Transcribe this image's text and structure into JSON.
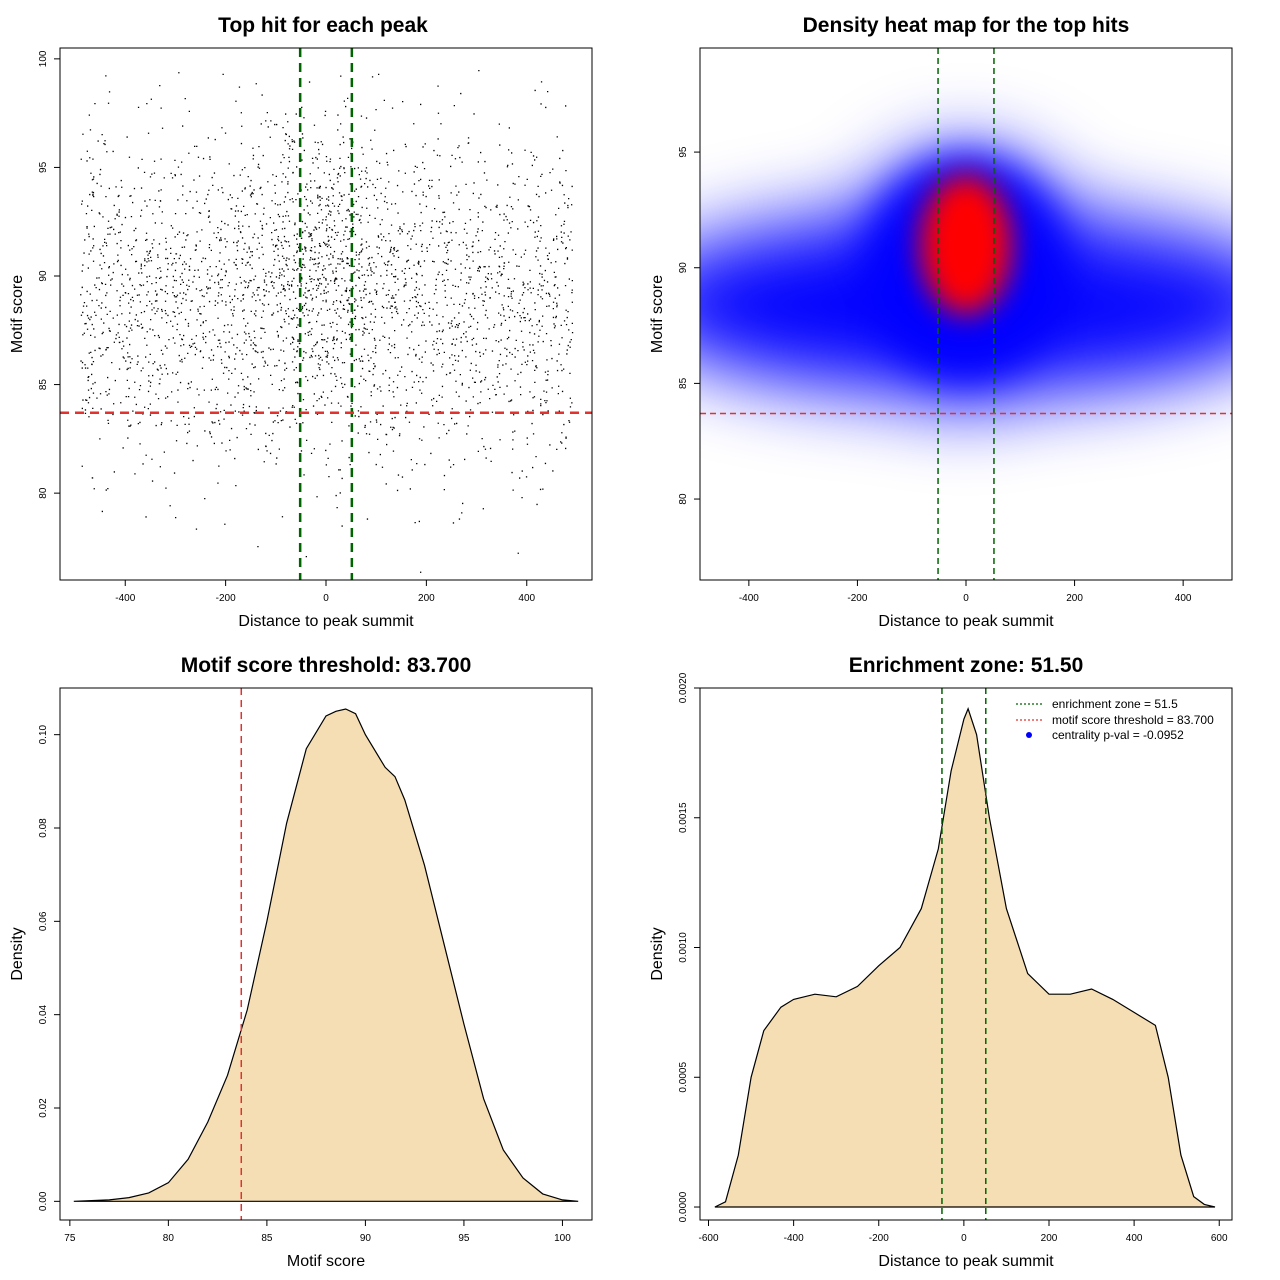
{
  "figure": {
    "colors": {
      "enrichment_line": "#006400",
      "threshold_line": "#e0322f",
      "density_fill": "#f5deb3",
      "points": "#000000",
      "heat_low": "#ffffff",
      "heat_mid": "#0000ff",
      "heat_high": "#ff0000"
    }
  },
  "chart_data": [
    {
      "type": "scatter",
      "title": "Top hit for each peak",
      "xlabel": "Distance to peak summit",
      "ylabel": "Motif score",
      "xlim": [
        -530,
        530
      ],
      "ylim": [
        76,
        100.5
      ],
      "xticks": [
        -400,
        -200,
        0,
        200,
        400
      ],
      "yticks": [
        80,
        85,
        90,
        95,
        100
      ],
      "vlines": [
        -51.5,
        51.5
      ],
      "hline": 83.7,
      "grid": false,
      "point_count_shown_approx": 14000,
      "distribution": {
        "x_range": [
          -490,
          490
        ],
        "y_center": 89.0,
        "y_spread": 3.8,
        "central_cluster": {
          "x_center": 0,
          "x_spread": 70,
          "y_center": 91.5,
          "y_spread": 3.0
        }
      }
    },
    {
      "type": "heatmap",
      "title": "Density heat map for the top hits",
      "xlabel": "Distance to peak summit",
      "ylabel": "Motif score",
      "xlim": [
        -490,
        490
      ],
      "ylim": [
        76.5,
        99.5
      ],
      "xticks": [
        -400,
        -200,
        0,
        200,
        400
      ],
      "yticks": [
        80,
        85,
        90,
        95
      ],
      "vlines": [
        -51.5,
        51.5
      ],
      "hline": 83.7,
      "hot_spot": {
        "x": 0,
        "y": 91
      },
      "grid": false
    },
    {
      "type": "area",
      "title": "Motif score threshold: 83.700",
      "xlabel": "Motif score",
      "ylabel": "Density",
      "xlim": [
        74.5,
        101.5
      ],
      "ylim": [
        -0.004,
        0.11
      ],
      "xticks": [
        75,
        80,
        85,
        90,
        95,
        100
      ],
      "yticks": [
        0.0,
        0.02,
        0.04,
        0.06,
        0.08,
        0.1
      ],
      "ytick_labels": [
        "0.00",
        "0.02",
        "0.04",
        "0.06",
        "0.08",
        "0.10"
      ],
      "vline": 83.7,
      "x": [
        75.2,
        77,
        78,
        79,
        80,
        81,
        82,
        83,
        84,
        85,
        86,
        87,
        88,
        88.5,
        89,
        89.5,
        90,
        91,
        91.5,
        92,
        93,
        94,
        95,
        96,
        97,
        98,
        99,
        100,
        100.8
      ],
      "y": [
        0.0,
        0.0003,
        0.0008,
        0.0018,
        0.004,
        0.009,
        0.017,
        0.027,
        0.041,
        0.06,
        0.081,
        0.097,
        0.104,
        0.105,
        0.1055,
        0.1045,
        0.1,
        0.093,
        0.091,
        0.086,
        0.072,
        0.055,
        0.038,
        0.022,
        0.011,
        0.005,
        0.0016,
        0.0003,
        0.0
      ],
      "grid": false
    },
    {
      "type": "area",
      "title": "Enrichment zone: 51.50",
      "xlabel": "Distance to peak summit",
      "ylabel": "Density",
      "xlim": [
        -620,
        630
      ],
      "ylim": [
        -5e-05,
        0.002
      ],
      "xticks": [
        -600,
        -400,
        -200,
        0,
        200,
        400,
        600
      ],
      "yticks": [
        0.0,
        0.0005,
        0.001,
        0.0015,
        0.002
      ],
      "ytick_labels": [
        "0.0000",
        "0.0005",
        "0.0010",
        "0.0015",
        "0.0020"
      ],
      "vlines": [
        -51.5,
        51.5
      ],
      "x": [
        -585,
        -560,
        -530,
        -500,
        -470,
        -430,
        -400,
        -350,
        -300,
        -250,
        -200,
        -150,
        -100,
        -60,
        -30,
        0,
        10,
        30,
        60,
        100,
        150,
        200,
        250,
        300,
        350,
        400,
        450,
        480,
        510,
        540,
        565,
        590
      ],
      "y": [
        0.0,
        2e-05,
        0.0002,
        0.0005,
        0.00068,
        0.00077,
        0.0008,
        0.00082,
        0.00081,
        0.00085,
        0.00093,
        0.001,
        0.00115,
        0.00138,
        0.00168,
        0.00188,
        0.00192,
        0.00182,
        0.0015,
        0.00115,
        0.0009,
        0.00082,
        0.00082,
        0.00084,
        0.0008,
        0.00075,
        0.0007,
        0.0005,
        0.0002,
        4e-05,
        1e-05,
        0.0
      ],
      "legend": {
        "position": "top-right",
        "entries": [
          {
            "label": "enrichment zone = 51.5",
            "style": "dotted-line",
            "color": "#006400"
          },
          {
            "label": "motif score threshold = 83.700",
            "style": "dotted-line",
            "color": "#e0322f"
          },
          {
            "label": "centrality p-val = -0.0952",
            "style": "point",
            "color": "#0000ff"
          }
        ]
      },
      "grid": false
    }
  ]
}
